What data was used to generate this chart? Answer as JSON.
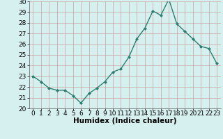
{
  "x": [
    0,
    1,
    2,
    3,
    4,
    5,
    6,
    7,
    8,
    9,
    10,
    11,
    12,
    13,
    14,
    15,
    16,
    17,
    18,
    19,
    20,
    21,
    22,
    23
  ],
  "y": [
    23.0,
    22.5,
    21.9,
    21.7,
    21.7,
    21.2,
    20.5,
    21.4,
    21.9,
    22.5,
    23.4,
    23.7,
    24.8,
    26.5,
    27.5,
    29.1,
    28.7,
    30.2,
    27.9,
    27.2,
    26.5,
    25.8,
    25.6,
    24.2
  ],
  "xlabel": "Humidex (Indice chaleur)",
  "ylim": [
    20,
    30
  ],
  "xlim": [
    -0.5,
    23.5
  ],
  "yticks": [
    20,
    21,
    22,
    23,
    24,
    25,
    26,
    27,
    28,
    29,
    30
  ],
  "xticks": [
    0,
    1,
    2,
    3,
    4,
    5,
    6,
    7,
    8,
    9,
    10,
    11,
    12,
    13,
    14,
    15,
    16,
    17,
    18,
    19,
    20,
    21,
    22,
    23
  ],
  "line_color": "#2e7d6e",
  "marker": "D",
  "marker_size": 2.0,
  "bg_color": "#d6f0f0",
  "grid_color": "#c8a0a0",
  "xlabel_fontsize": 7.5,
  "tick_fontsize": 6.5,
  "line_width": 1.0
}
